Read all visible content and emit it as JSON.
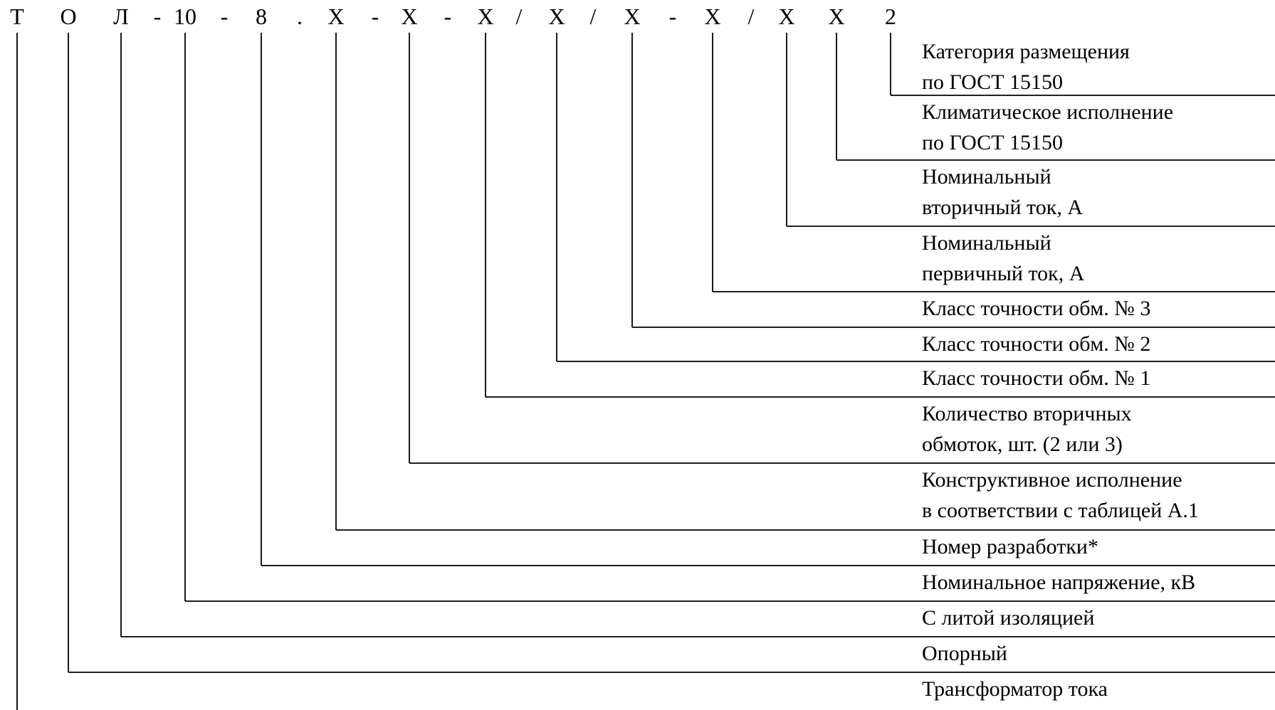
{
  "designation": {
    "characters": [
      "Т",
      "О",
      "Л",
      "-",
      "10",
      "-",
      "8",
      ".",
      "Х",
      "-",
      "Х",
      "-",
      "Х",
      "/",
      "Х",
      "/",
      "Х",
      "-",
      "Х",
      "/",
      "Х",
      "Х",
      "2"
    ]
  },
  "descriptions": [
    {
      "lines": [
        "Категория размещения",
        "по ГОСТ 15150"
      ]
    },
    {
      "lines": [
        "Климатическое исполнение",
        "по ГОСТ 15150"
      ]
    },
    {
      "lines": [
        "Номинальный",
        "вторичный ток, А"
      ]
    },
    {
      "lines": [
        "Номинальный",
        "первичный ток, А"
      ]
    },
    {
      "lines": [
        "Класс точности обм. № 3"
      ]
    },
    {
      "lines": [
        "Класс точности обм. № 2"
      ]
    },
    {
      "lines": [
        "Класс точности обм. № 1"
      ]
    },
    {
      "lines": [
        "Количество вторичных",
        "обмоток, шт. (2 или 3)"
      ]
    },
    {
      "lines": [
        "Конструктивное исполнение",
        "в соответствии с таблицей А.1"
      ]
    },
    {
      "lines": [
        "Номер разработки*"
      ]
    },
    {
      "lines": [
        "Номинальное напряжение, кВ"
      ]
    },
    {
      "lines": [
        "С литой изоляцией"
      ]
    },
    {
      "lines": [
        "Опорный"
      ]
    },
    {
      "lines": [
        "Трансформатор тока"
      ]
    }
  ]
}
